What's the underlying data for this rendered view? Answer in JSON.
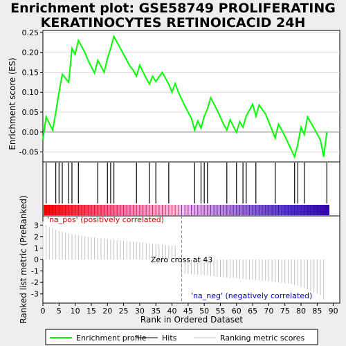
{
  "header": {
    "title_line1": "Enrichment plot: GSE58749 PROLIFERATING",
    "title_line2": "KERATINOCYTES RETINOICACID 24H"
  },
  "chart_data": {
    "type": "line",
    "x_label": "Rank in Ordered Dataset",
    "x_ticks": [
      0,
      5,
      10,
      15,
      20,
      25,
      30,
      35,
      40,
      45,
      50,
      55,
      60,
      65,
      70,
      75,
      80,
      85,
      90
    ],
    "xlim": [
      0,
      92
    ],
    "enrichment_panel": {
      "ylabel": "Enrichment score (ES)",
      "ylim": [
        -0.075,
        0.255
      ],
      "y_ticks": [
        -0.05,
        0.0,
        0.05,
        0.1,
        0.15,
        0.2,
        0.25
      ],
      "y_tick_labels": [
        "-0.05",
        "0.00",
        "0.05",
        "0.10",
        "0.15",
        "0.20",
        "0.25"
      ],
      "series": [
        {
          "name": "Enrichment profile",
          "color": "#00ff00",
          "x": [
            0,
            1,
            3,
            4,
            5,
            6,
            8,
            9,
            10,
            11,
            13,
            14,
            16,
            17,
            19,
            20,
            21,
            22,
            24,
            25,
            27,
            28,
            29,
            30,
            32,
            33,
            34,
            35,
            37,
            38,
            39,
            40,
            41,
            42,
            44,
            46,
            47,
            48,
            49,
            50,
            51,
            52,
            54,
            56,
            57,
            58,
            59,
            60,
            61,
            62,
            63,
            65,
            66,
            67,
            69,
            70,
            71,
            72,
            73,
            75,
            76,
            78,
            79,
            80,
            81,
            82,
            84,
            86,
            87,
            88
          ],
          "y": [
            -0.02,
            0.038,
            0.005,
            0.05,
            0.1,
            0.145,
            0.125,
            0.21,
            0.195,
            0.23,
            0.2,
            0.18,
            0.148,
            0.18,
            0.15,
            0.185,
            0.21,
            0.24,
            0.21,
            0.195,
            0.165,
            0.155,
            0.14,
            0.168,
            0.135,
            0.12,
            0.14,
            0.127,
            0.15,
            0.135,
            0.12,
            0.1,
            0.122,
            0.1,
            0.065,
            0.035,
            0.005,
            0.028,
            0.01,
            0.04,
            0.058,
            0.086,
            0.055,
            0.02,
            0.005,
            0.031,
            0.015,
            -0.001,
            0.026,
            0.012,
            0.04,
            0.07,
            0.04,
            0.068,
            0.045,
            0.025,
            0.005,
            -0.015,
            0.02,
            -0.01,
            -0.028,
            -0.062,
            -0.03,
            0.012,
            -0.006,
            0.038,
            0.01,
            -0.02,
            -0.062,
            0.0
          ]
        }
      ]
    },
    "hits_panel": {
      "hit_ranks": [
        1,
        4,
        5,
        6,
        8,
        9,
        11,
        17,
        20,
        21,
        22,
        29,
        33,
        35,
        39,
        47,
        49,
        50,
        51,
        57,
        60,
        62,
        63,
        66,
        72,
        78,
        79,
        81,
        88
      ],
      "gradient_start": "#ff0000",
      "gradient_mid": "#ffc0e8",
      "gradient_end": "#3300aa"
    },
    "metric_panel": {
      "ylabel": "Ranked list metric (PreRanked)",
      "ylim": [
        -3.8,
        3.8
      ],
      "y_ticks": [
        -3,
        -2,
        -1,
        0,
        1,
        2,
        3
      ],
      "y_tick_labels": [
        "-3",
        "-2",
        "-1",
        "0",
        "1",
        "2",
        "3"
      ],
      "metric_values": [
        3.3,
        3.0,
        2.8,
        2.75,
        2.6,
        2.5,
        2.42,
        2.35,
        2.28,
        2.22,
        2.18,
        2.14,
        2.08,
        2.03,
        1.98,
        1.95,
        1.92,
        1.88,
        1.85,
        1.82,
        1.78,
        1.75,
        1.73,
        1.7,
        1.67,
        1.64,
        1.61,
        1.58,
        1.55,
        1.52,
        1.5,
        1.47,
        1.44,
        1.41,
        1.38,
        1.35,
        1.32,
        1.3,
        1.28,
        1.25,
        1.22,
        1.2,
        0.2,
        -1.2,
        -1.22,
        -1.25,
        -1.28,
        -1.3,
        -1.32,
        -1.35,
        -1.38,
        -1.4,
        -1.43,
        -1.46,
        -1.5,
        -1.52,
        -1.55,
        -1.58,
        -1.6,
        -1.62,
        -1.65,
        -1.68,
        -1.7,
        -1.72,
        -1.75,
        -1.78,
        -1.8,
        -1.82,
        -1.85,
        -1.88,
        -1.9,
        -1.93,
        -1.96,
        -2.0,
        -2.03,
        -2.07,
        -2.1,
        -2.15,
        -2.2,
        -2.3,
        -2.4,
        -2.5,
        -2.6,
        -2.75,
        -2.9,
        -3.0,
        -3.1,
        -3.5
      ],
      "zero_cross_rank": 43,
      "zero_cross_label": "Zero cross at 43",
      "pos_label": "'na_pos' (positively correlated)",
      "neg_label": "'na_neg' (negatively correlated)"
    },
    "legend": [
      {
        "label": "Enrichment profile",
        "color": "#00ff00"
      },
      {
        "label": "Hits",
        "color": "#000000"
      },
      {
        "label": "Ranking metric scores",
        "color": "#c0c0c0"
      }
    ]
  }
}
